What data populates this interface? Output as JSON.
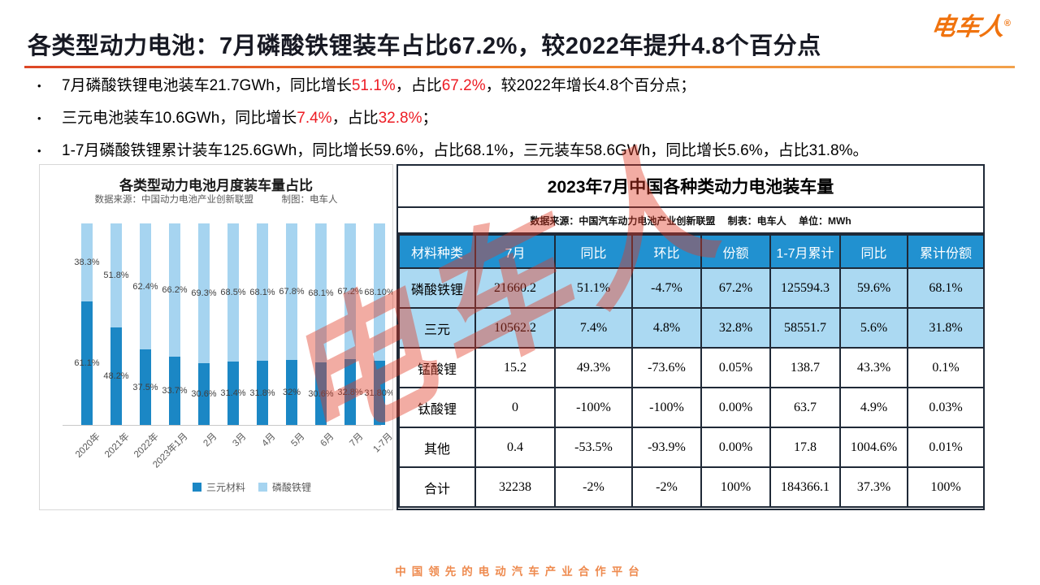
{
  "logo": {
    "text": "电车人",
    "reg": "®"
  },
  "header": {
    "title": "各类型动力电池：7月磷酸铁锂装车占比67.2%，较2022年提升4.8个百分点"
  },
  "bullets": [
    {
      "segments": [
        {
          "t": "7月磷酸铁锂电池装车21.7GWh，同比增长",
          "red": false
        },
        {
          "t": "51.1%",
          "red": true
        },
        {
          "t": "，占比",
          "red": false
        },
        {
          "t": "67.2%",
          "red": true
        },
        {
          "t": "，较2022年增长4.8个百分点；",
          "red": false
        }
      ]
    },
    {
      "segments": [
        {
          "t": "三元电池装车10.6GWh，同比增长",
          "red": false
        },
        {
          "t": "7.4%",
          "red": true
        },
        {
          "t": "，占比",
          "red": false
        },
        {
          "t": "32.8%",
          "red": true
        },
        {
          "t": "；",
          "red": false
        }
      ]
    },
    {
      "segments": [
        {
          "t": "1-7月磷酸铁锂累计装车125.6GWh，同比增长59.6%，占比68.1%，三元装车58.6GWh，同比增长5.6%，占比31.8%。",
          "red": false
        }
      ]
    }
  ],
  "chart_data": [
    {
      "type": "stacked-bar",
      "title": "各类型动力电池月度装车量占比",
      "subtitle": "数据来源：中国动力电池产业创新联盟　　　制图：电车人",
      "categories": [
        "2020年",
        "2021年",
        "2022年",
        "2023年1月",
        "2月",
        "3月",
        "4月",
        "5月",
        "6月",
        "7月",
        "1-7月"
      ],
      "series": [
        {
          "name": "三元材料",
          "color": "#1b87c5",
          "values": [
            61.1,
            48.2,
            37.5,
            33.7,
            30.6,
            31.4,
            31.8,
            32,
            30.6,
            32.8,
            31.8
          ],
          "labels": [
            "61.1%",
            "48.2%",
            "37.5%",
            "33.7%",
            "30.6%",
            "31.4%",
            "31.8%",
            "32%",
            "30.6%",
            "32.8%",
            "31.80%"
          ]
        },
        {
          "name": "磷酸铁锂",
          "color": "#a6d4f0",
          "values": [
            38.3,
            51.8,
            62.4,
            66.2,
            69.3,
            68.5,
            68.1,
            67.8,
            68.1,
            67.2,
            68.1
          ],
          "labels": [
            "38.3%",
            "51.8%",
            "62.4%",
            "66.2%",
            "69.3%",
            "68.5%",
            "68.1%",
            "67.8%",
            "68.1%",
            "67.2%",
            "68.10%"
          ]
        }
      ],
      "ylim": [
        0,
        100
      ],
      "unit": "%",
      "legend_position": "bottom",
      "grid": false
    },
    {
      "type": "table",
      "title": "2023年7月中国各种类动力电池装车量",
      "note": "数据来源：中国汽车动力电池产业创新联盟　 制表：电车人　 单位：MWh",
      "columns": [
        "材料种类",
        "7月",
        "同比",
        "环比",
        "份额",
        "1-7月累计",
        "同比",
        "累计份额"
      ],
      "rows": [
        {
          "cells": [
            "磷酸铁锂",
            "21660.2",
            "51.1%",
            "-4.7%",
            "67.2%",
            "125594.3",
            "59.6%",
            "68.1%"
          ],
          "highlight": true,
          "red_cells": [
            4
          ]
        },
        {
          "cells": [
            "三元",
            "10562.2",
            "7.4%",
            "4.8%",
            "32.8%",
            "58551.7",
            "5.6%",
            "31.8%"
          ],
          "highlight": true,
          "red_cells": [
            4
          ]
        },
        {
          "cells": [
            "锰酸锂",
            "15.2",
            "49.3%",
            "-73.6%",
            "0.05%",
            "138.7",
            "43.3%",
            "0.1%"
          ],
          "highlight": false,
          "red_cells": []
        },
        {
          "cells": [
            "钛酸锂",
            "0",
            "-100%",
            "-100%",
            "0.00%",
            "63.7",
            "4.9%",
            "0.03%"
          ],
          "highlight": false,
          "red_cells": []
        },
        {
          "cells": [
            "其他",
            "0.4",
            "-53.5%",
            "-93.9%",
            "0.00%",
            "17.8",
            "1004.6%",
            "0.01%"
          ],
          "highlight": false,
          "red_cells": []
        },
        {
          "cells": [
            "合计",
            "32238",
            "-2%",
            "-2%",
            "100%",
            "184366.1",
            "37.3%",
            "100%"
          ],
          "highlight": false,
          "red_cells": []
        }
      ]
    }
  ],
  "watermark": {
    "text": "电车人"
  },
  "footer": {
    "text": "中国领先的电动汽车产业合作平台"
  },
  "colors": {
    "accent_orange": "#f0730e",
    "highlight_red": "#ed1c24",
    "table_header_blue": "#2191d0",
    "table_row_blue": "#abd9f2",
    "bar_dark_blue": "#1b87c5",
    "bar_light_blue": "#a6d4f0",
    "table_red_value": "#dc4b5c",
    "footer_orange": "#ee8a4e"
  }
}
